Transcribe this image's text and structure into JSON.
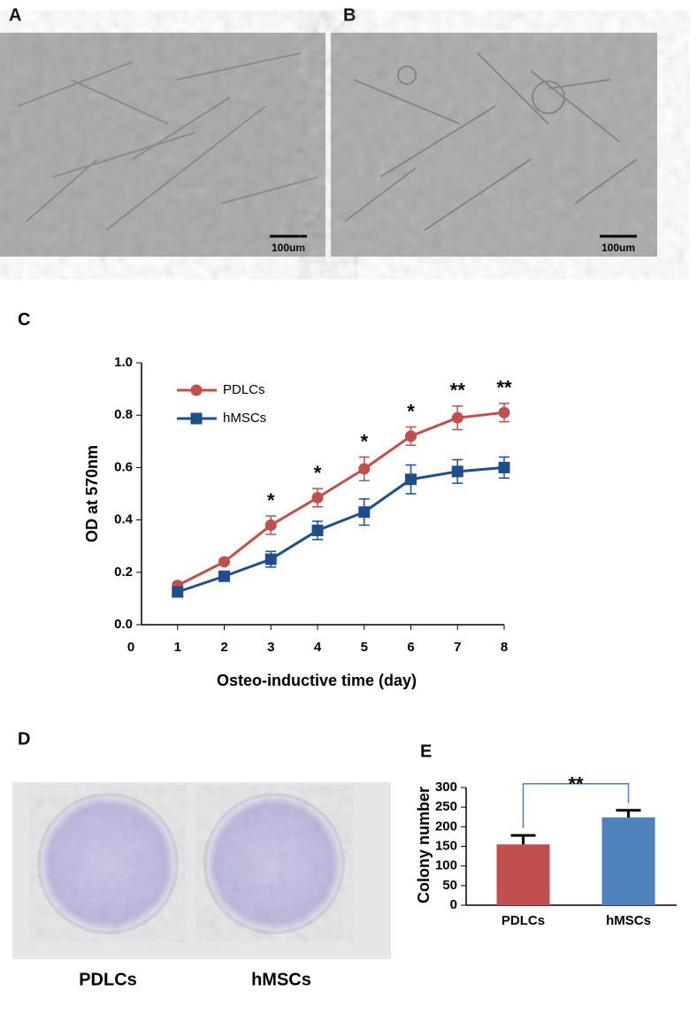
{
  "panels": {
    "A": {
      "label": "A",
      "scale_bar": "100um"
    },
    "B": {
      "label": "B",
      "scale_bar": "100um"
    },
    "D": {
      "label": "D",
      "dishes": [
        "PDLCs",
        "hMSCs"
      ]
    }
  },
  "chart_data": [
    {
      "type": "line",
      "panel_label": "C",
      "x_label": "Osteo-inductive time (day)",
      "y_label": "OD at 570nm",
      "x": [
        1,
        2,
        3,
        4,
        5,
        6,
        7,
        8
      ],
      "series": [
        {
          "name": "PDLCs",
          "color": "#c0504d",
          "marker": "circle",
          "values": [
            0.15,
            0.24,
            0.38,
            0.485,
            0.595,
            0.72,
            0.79,
            0.81
          ],
          "errors": [
            0.01,
            0.01,
            0.035,
            0.035,
            0.045,
            0.035,
            0.045,
            0.035
          ]
        },
        {
          "name": "hMSCs",
          "color": "#1f4e8c",
          "marker": "square",
          "values": [
            0.125,
            0.185,
            0.25,
            0.36,
            0.43,
            0.555,
            0.585,
            0.6
          ],
          "errors": [
            0.01,
            0.01,
            0.03,
            0.035,
            0.05,
            0.055,
            0.045,
            0.04
          ]
        }
      ],
      "significance": [
        null,
        null,
        "*",
        "*",
        "*",
        "*",
        "**",
        "**"
      ],
      "xlim": [
        0,
        8
      ],
      "xticks": [
        0,
        1,
        2,
        3,
        4,
        5,
        6,
        7,
        8
      ],
      "ylim": [
        0,
        1
      ],
      "yticks": [
        {
          "value": 0,
          "label": "0.0"
        },
        {
          "value": 0.2,
          "label": "0.2"
        },
        {
          "value": 0.4,
          "label": "0.4"
        },
        {
          "value": 0.6,
          "label": "0.6"
        },
        {
          "value": 0.8,
          "label": "0.8"
        },
        {
          "value": 1,
          "label": "1.0"
        }
      ],
      "legend": "upper left"
    },
    {
      "type": "bar",
      "panel_label": "E",
      "y_label": "Colony number",
      "categories": [
        "PDLCs",
        "hMSCs"
      ],
      "values": [
        155,
        224
      ],
      "errors": [
        23,
        18
      ],
      "colors": [
        "#c0504d",
        "#4f81bd"
      ],
      "annotation": "**",
      "ylim": [
        0,
        300
      ],
      "yticks": [
        0,
        50,
        100,
        150,
        200,
        250,
        300
      ]
    }
  ]
}
